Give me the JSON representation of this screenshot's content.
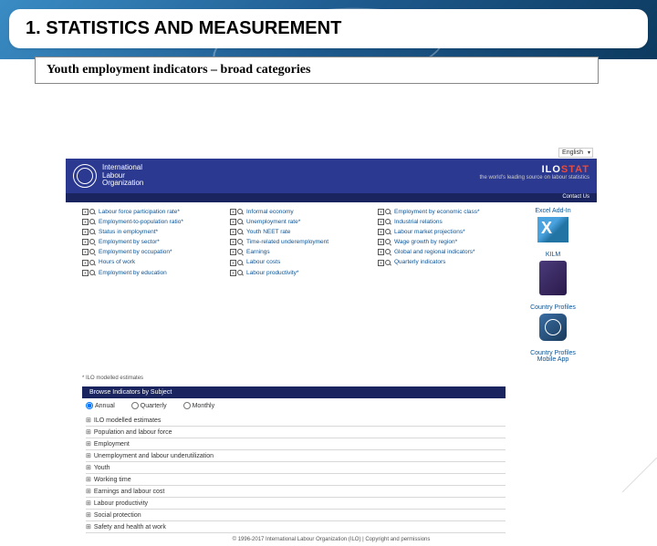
{
  "heading": "1.  STATISTICS AND MEASUREMENT",
  "subtitle": "Youth employment indicators – broad categories",
  "lang": "English",
  "org": "International\nLabour\nOrganization",
  "ilostat": {
    "ilo": "ILO",
    "stat": "STAT",
    "tag": "the world's leading source on labour statistics"
  },
  "contact": "Contact Us",
  "indicators": {
    "col1": [
      "Labour force participation rate*",
      "Employment-to-population ratio*",
      "Status in employment*",
      "Employment by sector*",
      "Employment by occupation*",
      "Hours of work",
      "Employment by education"
    ],
    "col2": [
      "Informal economy",
      "Unemployment rate*",
      "Youth NEET rate",
      "Time-related underemployment",
      "Earnings",
      "Labour costs",
      "Labour productivity*"
    ],
    "col3": [
      "Employment by economic class*",
      "Industrial relations",
      "Labour market projections*",
      "Wage growth by region*",
      "Global and regional indicators*",
      "Quarterly indicators"
    ]
  },
  "footnote": "* ILO modelled estimates",
  "sidebar": {
    "excel": "Excel Add-In",
    "kilm": "KILM",
    "cp": "Country Profiles",
    "cpapp": "Country Profiles\nMobile App"
  },
  "browse": "Browse Indicators by Subject",
  "freq": [
    "Annual",
    "Quarterly",
    "Monthly"
  ],
  "subjects": [
    "ILO modelled estimates",
    "Population and labour force",
    "Employment",
    "Unemployment and labour underutilization",
    "Youth",
    "Working time",
    "Earnings and labour cost",
    "Labour productivity",
    "Social protection",
    "Safety and health at work"
  ],
  "copyright": "© 1996-2017 International Labour Organization (ILO) | Copyright and permissions"
}
